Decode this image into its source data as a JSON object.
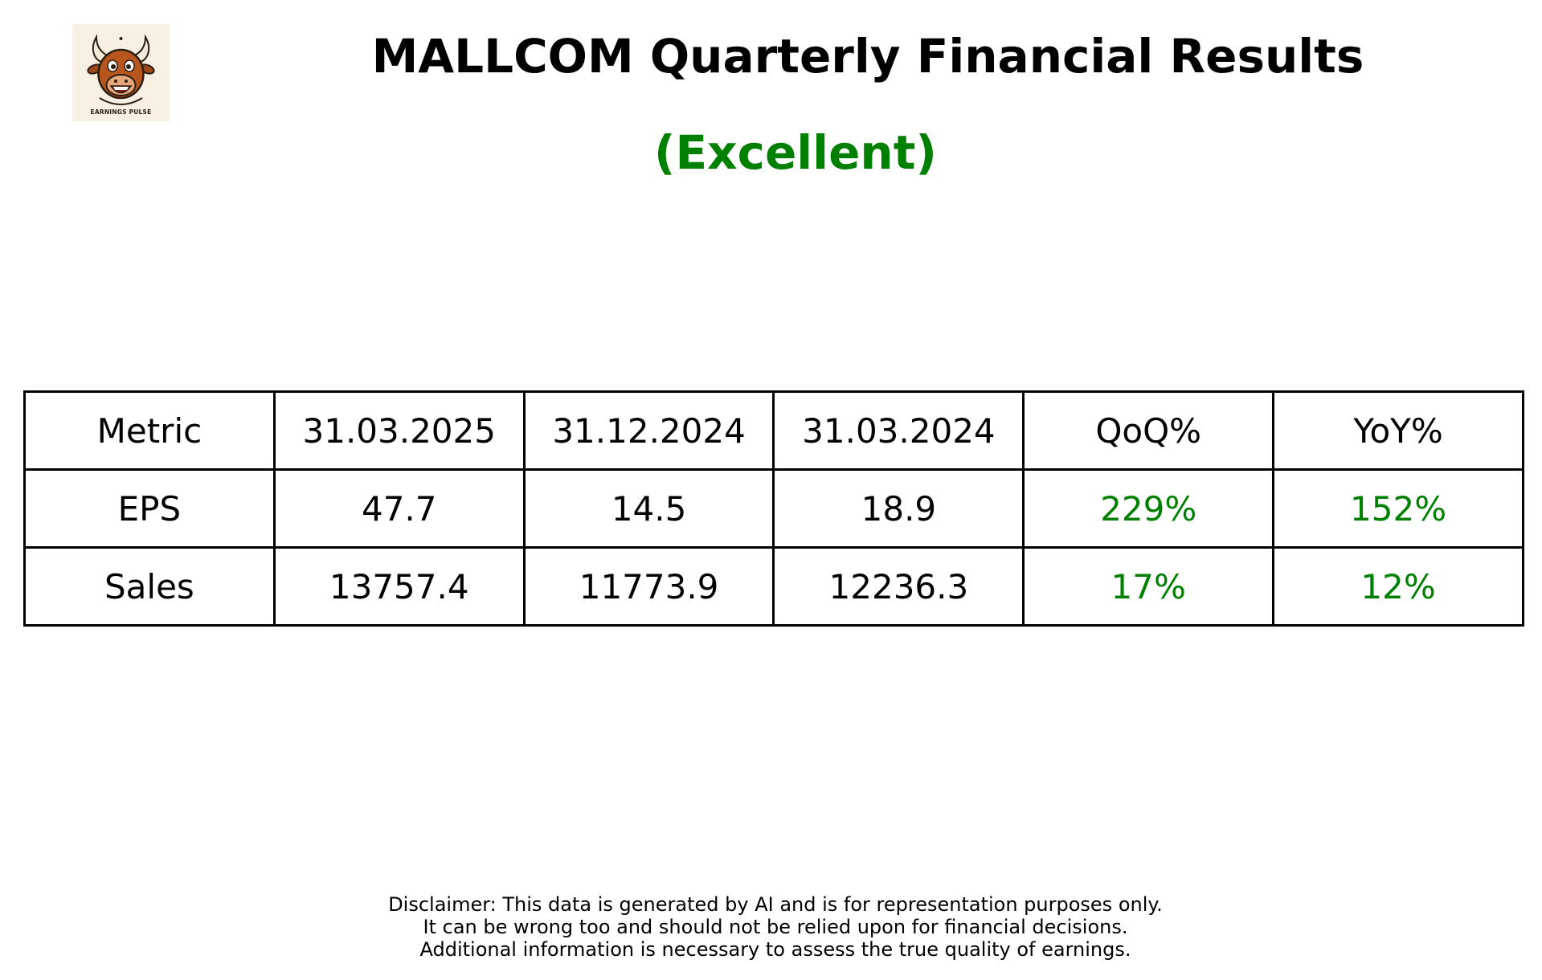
{
  "logo": {
    "text": "EARNINGS PULSE",
    "icon": "bull-face-icon"
  },
  "title": "MALLCOM Quarterly Financial Results",
  "subtitle": "(Excellent)",
  "colors": {
    "positive": "#008000",
    "text": "#000000",
    "border": "#000000",
    "background": "#ffffff"
  },
  "chart_data": {
    "type": "table",
    "columns": [
      "Metric",
      "31.03.2025",
      "31.12.2024",
      "31.03.2024",
      "QoQ%",
      "YoY%"
    ],
    "rows": [
      [
        "EPS",
        "47.7",
        "14.5",
        "18.9",
        "229%",
        "152%"
      ],
      [
        "Sales",
        "13757.4",
        "11773.9",
        "12236.3",
        "17%",
        "12%"
      ]
    ]
  },
  "disclaimer": [
    "Disclaimer: This data is generated by AI and is for representation purposes only.",
    "It can be wrong too and should not be relied upon for financial decisions.",
    "Additional information is necessary to assess the true quality of earnings."
  ]
}
